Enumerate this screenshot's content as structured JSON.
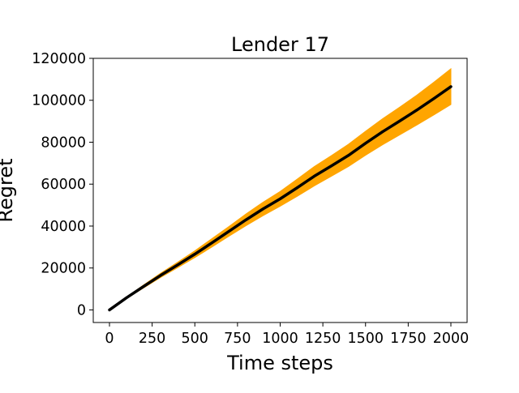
{
  "chart_data": {
    "type": "line",
    "title": "Lender 17",
    "xlabel": "Time steps",
    "ylabel": "Regret",
    "xlim": [
      -95,
      2095
    ],
    "ylim": [
      -6000,
      120000
    ],
    "xticks": [
      0,
      250,
      500,
      750,
      1000,
      1250,
      1500,
      1750,
      2000
    ],
    "xtick_labels": [
      "0",
      "250",
      "500",
      "750",
      "1000",
      "1250",
      "1500",
      "1750",
      "2000"
    ],
    "yticks": [
      0,
      20000,
      40000,
      60000,
      80000,
      100000,
      120000
    ],
    "ytick_labels": [
      "0",
      "20000",
      "40000",
      "60000",
      "80000",
      "100000",
      "120000"
    ],
    "grid": false,
    "legend": "none",
    "series": [
      {
        "x": [
          0,
          100,
          200,
          300,
          400,
          500,
          600,
          700,
          800,
          900,
          1000,
          1100,
          1200,
          1300,
          1400,
          1500,
          1600,
          1700,
          1800,
          1900,
          2000
        ],
        "y": [
          0,
          5800,
          11200,
          16500,
          21500,
          26600,
          32000,
          37500,
          43000,
          48200,
          53000,
          58300,
          63800,
          68700,
          73700,
          79500,
          85000,
          90100,
          95300,
          100800,
          106500
        ],
        "lower": [
          0,
          5500,
          10500,
          15500,
          20200,
          25000,
          30000,
          35200,
          40200,
          45000,
          49500,
          54200,
          59200,
          63800,
          68400,
          73800,
          78800,
          83500,
          88200,
          93000,
          98000
        ],
        "upper": [
          0,
          6100,
          11900,
          17500,
          22800,
          28200,
          34000,
          39800,
          45800,
          51400,
          56500,
          62400,
          68400,
          73600,
          79000,
          85200,
          91200,
          96700,
          102400,
          108600,
          115000
        ],
        "color": "#000000",
        "band_color": "#ffa500"
      }
    ]
  }
}
